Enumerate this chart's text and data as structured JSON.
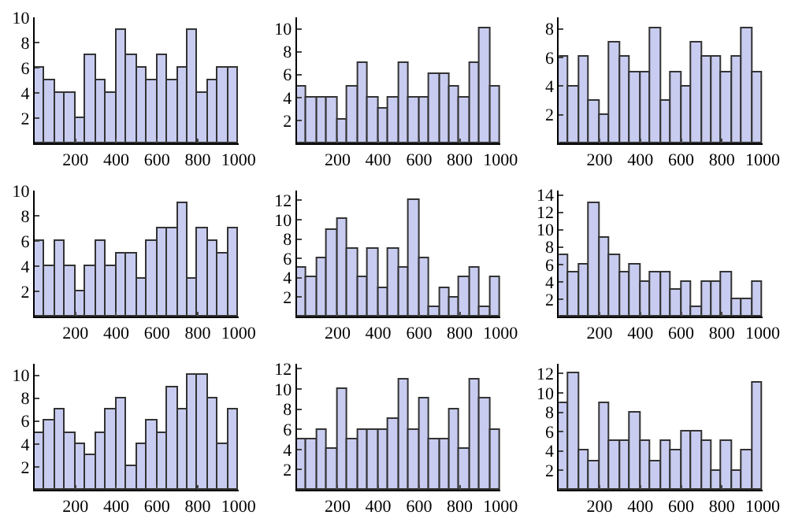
{
  "chart_data": [
    {
      "type": "histogram",
      "bins": [
        0,
        50,
        100,
        150,
        200,
        250,
        300,
        350,
        400,
        450,
        500,
        550,
        600,
        650,
        700,
        750,
        800,
        850,
        900,
        950,
        1000
      ],
      "values": [
        6,
        5,
        4,
        4,
        2,
        7,
        5,
        4,
        9,
        7,
        6,
        5,
        7,
        5,
        6,
        9,
        4,
        5,
        6,
        6
      ],
      "color": "#c8ccf0",
      "xlim": [
        0,
        1000
      ],
      "xticks": [
        200,
        400,
        600,
        800,
        1000
      ],
      "ylim": [
        0,
        10
      ],
      "yticks": [
        2,
        4,
        6,
        8,
        10
      ]
    },
    {
      "type": "histogram",
      "bins": [
        0,
        50,
        100,
        150,
        200,
        250,
        300,
        350,
        400,
        450,
        500,
        550,
        600,
        650,
        700,
        750,
        800,
        850,
        900,
        950,
        1000
      ],
      "values": [
        5,
        4,
        4,
        4,
        2,
        5,
        7,
        4,
        3,
        4,
        7,
        4,
        4,
        6,
        6,
        5,
        4,
        7,
        10,
        5
      ],
      "color": "#c8ccf0",
      "xlim": [
        0,
        1000
      ],
      "xticks": [
        200,
        400,
        600,
        800,
        1000
      ],
      "ylim": [
        0,
        11
      ],
      "yticks": [
        2,
        4,
        6,
        8,
        10
      ]
    },
    {
      "type": "histogram",
      "bins": [
        0,
        50,
        100,
        150,
        200,
        250,
        300,
        350,
        400,
        450,
        500,
        550,
        600,
        650,
        700,
        750,
        800,
        850,
        900,
        950,
        1000
      ],
      "values": [
        6,
        4,
        6,
        3,
        2,
        7,
        6,
        5,
        5,
        8,
        3,
        5,
        4,
        7,
        6,
        6,
        5,
        6,
        8,
        5
      ],
      "color": "#c8ccf0",
      "xlim": [
        0,
        1000
      ],
      "xticks": [
        200,
        400,
        600,
        800,
        1000
      ],
      "ylim": [
        0,
        8.8
      ],
      "yticks": [
        2,
        4,
        6,
        8
      ]
    },
    {
      "type": "histogram",
      "bins": [
        0,
        50,
        100,
        150,
        200,
        250,
        300,
        350,
        400,
        450,
        500,
        550,
        600,
        650,
        700,
        750,
        800,
        850,
        900,
        950,
        1000
      ],
      "values": [
        6,
        4,
        6,
        4,
        2,
        4,
        6,
        4,
        5,
        5,
        3,
        6,
        7,
        7,
        9,
        3,
        7,
        6,
        5,
        7
      ],
      "color": "#c8ccf0",
      "xlim": [
        0,
        1000
      ],
      "xticks": [
        200,
        400,
        600,
        800,
        1000
      ],
      "ylim": [
        0,
        10
      ],
      "yticks": [
        2,
        4,
        6,
        8,
        10
      ]
    },
    {
      "type": "histogram",
      "bins": [
        0,
        50,
        100,
        150,
        200,
        250,
        300,
        350,
        400,
        450,
        500,
        550,
        600,
        650,
        700,
        750,
        800,
        850,
        900,
        950,
        1000
      ],
      "values": [
        5,
        4,
        6,
        9,
        10,
        7,
        4,
        7,
        3,
        7,
        5,
        12,
        6,
        1,
        3,
        2,
        4,
        5,
        1,
        4
      ],
      "color": "#c8ccf0",
      "xlim": [
        0,
        1000
      ],
      "xticks": [
        200,
        400,
        600,
        800,
        1000
      ],
      "ylim": [
        0,
        13
      ],
      "yticks": [
        2,
        4,
        6,
        8,
        10,
        12
      ]
    },
    {
      "type": "histogram",
      "bins": [
        0,
        50,
        100,
        150,
        200,
        250,
        300,
        350,
        400,
        450,
        500,
        550,
        600,
        650,
        700,
        750,
        800,
        850,
        900,
        950,
        1000
      ],
      "values": [
        7,
        5,
        6,
        13,
        9,
        7,
        5,
        6,
        4,
        5,
        5,
        3,
        4,
        1,
        4,
        4,
        5,
        2,
        2,
        4
      ],
      "color": "#c8ccf0",
      "xlim": [
        0,
        1000
      ],
      "xticks": [
        200,
        400,
        600,
        800,
        1000
      ],
      "ylim": [
        0,
        14.5
      ],
      "yticks": [
        2,
        4,
        6,
        8,
        10,
        12,
        14
      ]
    },
    {
      "type": "histogram",
      "bins": [
        0,
        50,
        100,
        150,
        200,
        250,
        300,
        350,
        400,
        450,
        500,
        550,
        600,
        650,
        700,
        750,
        800,
        850,
        900,
        950,
        1000
      ],
      "values": [
        5,
        6,
        7,
        5,
        4,
        3,
        5,
        7,
        8,
        2,
        4,
        6,
        5,
        9,
        7,
        10,
        10,
        8,
        4,
        7
      ],
      "color": "#c8ccf0",
      "xlim": [
        0,
        1000
      ],
      "xticks": [
        200,
        400,
        600,
        800,
        1000
      ],
      "ylim": [
        0,
        11
      ],
      "yticks": [
        2,
        4,
        6,
        8,
        10
      ]
    },
    {
      "type": "histogram",
      "bins": [
        0,
        50,
        100,
        150,
        200,
        250,
        300,
        350,
        400,
        450,
        500,
        550,
        600,
        650,
        700,
        750,
        800,
        850,
        900,
        950,
        1000
      ],
      "values": [
        5,
        5,
        6,
        4,
        10,
        5,
        6,
        6,
        6,
        7,
        11,
        6,
        9,
        5,
        5,
        8,
        4,
        11,
        9,
        6
      ],
      "color": "#c8ccf0",
      "xlim": [
        0,
        1000
      ],
      "xticks": [
        200,
        400,
        600,
        800,
        1000
      ],
      "ylim": [
        0,
        12.5
      ],
      "yticks": [
        2,
        4,
        6,
        8,
        10,
        12
      ]
    },
    {
      "type": "histogram",
      "bins": [
        0,
        50,
        100,
        150,
        200,
        250,
        300,
        350,
        400,
        450,
        500,
        550,
        600,
        650,
        700,
        750,
        800,
        850,
        900,
        950,
        1000
      ],
      "values": [
        9,
        12,
        4,
        3,
        9,
        5,
        5,
        8,
        5,
        3,
        5,
        4,
        6,
        6,
        5,
        2,
        5,
        2,
        4,
        11
      ],
      "color": "#c8ccf0",
      "xlim": [
        0,
        1000
      ],
      "xticks": [
        200,
        400,
        600,
        800,
        1000
      ],
      "ylim": [
        0,
        13
      ],
      "yticks": [
        2,
        4,
        6,
        8,
        10,
        12
      ]
    }
  ]
}
